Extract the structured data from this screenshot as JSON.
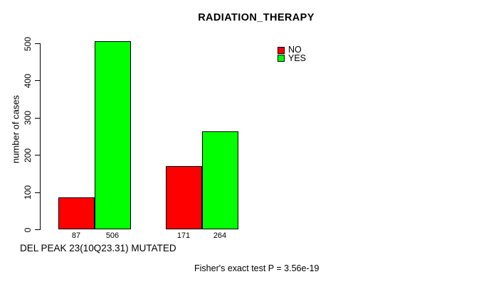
{
  "chart_data": {
    "type": "bar",
    "title": "RADIATION_THERAPY",
    "xlabel": "DEL PEAK 23(10Q23.31) MUTATED",
    "ylabel": "number of cases",
    "annotation": "Fisher's exact test P = 3.56e-19",
    "ylim": [
      0,
      500
    ],
    "yticks": [
      0,
      100,
      200,
      300,
      400,
      500
    ],
    "grid": false,
    "legend_position": "top-right",
    "background_color": "#FFFFFF",
    "bar_outline_color": "#000000",
    "n_groups": 2,
    "series": [
      {
        "name": "NO",
        "color": "#FF0000",
        "values": [
          87,
          171
        ]
      },
      {
        "name": "YES",
        "color": "#00FF00",
        "values": [
          506,
          264
        ]
      }
    ],
    "value_labels": [
      "87",
      "506",
      "171",
      "264"
    ]
  }
}
